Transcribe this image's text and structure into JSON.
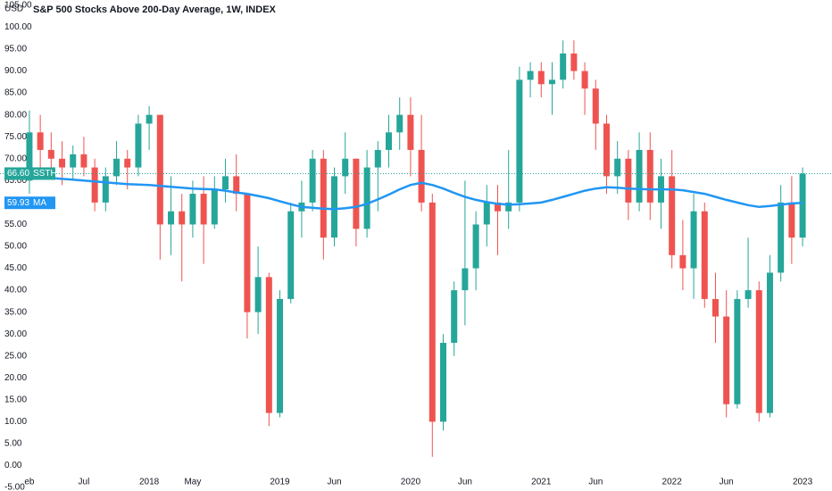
{
  "chart_data": {
    "type": "candlestick",
    "title": "S&P 500 Stocks Above 200-Day Average, 1W, INDEX",
    "unit": "USD",
    "symbol": "SSTH",
    "up_color": "#26a69a",
    "down_color": "#ef5350",
    "open": [
      65,
      76,
      72,
      70,
      68,
      71,
      68,
      60,
      66,
      70,
      68,
      78,
      80,
      55,
      58,
      55,
      62,
      55,
      63,
      66,
      62,
      35,
      43,
      12,
      38,
      58,
      60,
      70,
      52,
      66,
      70,
      54,
      68,
      72,
      76,
      80,
      72,
      60,
      10,
      28,
      40,
      45,
      55,
      60,
      58,
      60,
      88,
      90,
      87,
      88,
      94,
      90,
      86,
      78,
      66,
      70,
      60,
      72,
      60,
      66,
      48,
      45,
      58,
      38,
      34,
      14,
      38,
      40,
      12,
      44,
      60,
      52
    ],
    "high": [
      81,
      80,
      76,
      74,
      73,
      75,
      70,
      68,
      74,
      72,
      80,
      82,
      80,
      66,
      62,
      65,
      66,
      66,
      70,
      71,
      62,
      50,
      44,
      40,
      60,
      65,
      72,
      72,
      68,
      76,
      70,
      72,
      74,
      80,
      84,
      84,
      80,
      62,
      30,
      42,
      65,
      58,
      64,
      64,
      72,
      91,
      92,
      92,
      92,
      97,
      97,
      92,
      88,
      80,
      74,
      72,
      76,
      76,
      70,
      72,
      56,
      62,
      60,
      44,
      40,
      40,
      52,
      42,
      48,
      64,
      66,
      68
    ],
    "low": [
      62,
      68,
      66,
      64,
      65,
      66,
      58,
      58,
      64,
      63,
      66,
      72,
      47,
      48,
      42,
      52,
      46,
      54,
      60,
      58,
      29,
      30,
      9,
      11,
      37,
      52,
      58,
      47,
      50,
      62,
      50,
      52,
      58,
      68,
      72,
      66,
      58,
      2,
      8,
      25,
      32,
      40,
      50,
      48,
      54,
      58,
      84,
      84,
      80,
      86,
      88,
      80,
      72,
      62,
      62,
      56,
      58,
      56,
      54,
      45,
      40,
      38,
      36,
      28,
      11,
      13,
      36,
      10,
      11,
      42,
      46,
      50
    ],
    "close": [
      76,
      72,
      70,
      68,
      71,
      68,
      60,
      66,
      70,
      68,
      78,
      80,
      55,
      58,
      55,
      62,
      55,
      63,
      66,
      62,
      35,
      43,
      12,
      38,
      58,
      60,
      70,
      52,
      66,
      70,
      54,
      68,
      72,
      76,
      80,
      72,
      60,
      10,
      28,
      40,
      45,
      55,
      60,
      58,
      60,
      88,
      90,
      87,
      88,
      94,
      90,
      86,
      78,
      66,
      70,
      60,
      72,
      60,
      66,
      48,
      45,
      58,
      38,
      34,
      14,
      38,
      40,
      12,
      44,
      60,
      52,
      66.6
    ],
    "last_label": "66.60",
    "ma": {
      "name": "MA",
      "color": "#2196f3",
      "label": "59.93",
      "values": [
        66,
        65.8,
        65.6,
        65.4,
        65.2,
        65,
        64.8,
        64.6,
        64.4,
        64.2,
        64.1,
        64,
        63.8,
        63.6,
        63.4,
        63.2,
        63.1,
        63,
        62.7,
        62.3,
        62,
        61.5,
        61,
        60.3,
        59.6,
        59,
        58.8,
        58.6,
        58.5,
        58.7,
        59,
        59.7,
        60.7,
        61.8,
        63,
        64,
        64.5,
        64,
        63.2,
        62.2,
        61.3,
        60.6,
        60.1,
        59.7,
        59.5,
        59.6,
        59.8,
        60,
        60.6,
        61.3,
        62,
        62.7,
        63.2,
        63.5,
        63.4,
        63.2,
        63.1,
        63,
        63,
        63,
        62.8,
        62.4,
        62,
        61.3,
        60.6,
        60,
        59.4,
        59,
        59.2,
        59.5,
        59.8,
        59.93
      ]
    },
    "xlim": [
      -2.7,
      73.7
    ],
    "ylim": [
      -5.8,
      106.2
    ],
    "xticks": [
      {
        "value": 0,
        "label": "eb"
      },
      {
        "value": 5,
        "label": "Jul"
      },
      {
        "value": 11,
        "label": "2018"
      },
      {
        "value": 15,
        "label": "May"
      },
      {
        "value": 23,
        "label": "2019"
      },
      {
        "value": 28,
        "label": "Jun"
      },
      {
        "value": 35,
        "label": "2020"
      },
      {
        "value": 40,
        "label": "Jun"
      },
      {
        "value": 47,
        "label": "2021"
      },
      {
        "value": 52,
        "label": "Jun"
      },
      {
        "value": 59,
        "label": "2022"
      },
      {
        "value": 64,
        "label": "Jun"
      },
      {
        "value": 71,
        "label": "2023"
      }
    ],
    "yticks": [
      {
        "value": -5,
        "label": "-5.00"
      },
      {
        "value": 0,
        "label": "0.00"
      },
      {
        "value": 5,
        "label": "5.00"
      },
      {
        "value": 10,
        "label": "10.00"
      },
      {
        "value": 15,
        "label": "15.00"
      },
      {
        "value": 20,
        "label": "20.00"
      },
      {
        "value": 25,
        "label": "25.00"
      },
      {
        "value": 30,
        "label": "30.00"
      },
      {
        "value": 35,
        "label": "35.00"
      },
      {
        "value": 40,
        "label": "40.00"
      },
      {
        "value": 45,
        "label": "45.00"
      },
      {
        "value": 50,
        "label": "50.00"
      },
      {
        "value": 55,
        "label": "55.00"
      },
      {
        "value": 60,
        "label": "60.00"
      },
      {
        "value": 65,
        "label": "65.00"
      },
      {
        "value": 70,
        "label": "70.00"
      },
      {
        "value": 75,
        "label": "75.00"
      },
      {
        "value": 80,
        "label": "80.00"
      },
      {
        "value": 85,
        "label": "85.00"
      },
      {
        "value": 90,
        "label": "90.00"
      },
      {
        "value": 95,
        "label": "95.00"
      },
      {
        "value": 100,
        "label": "100.00"
      },
      {
        "value": 105,
        "label": "105.00"
      }
    ]
  }
}
